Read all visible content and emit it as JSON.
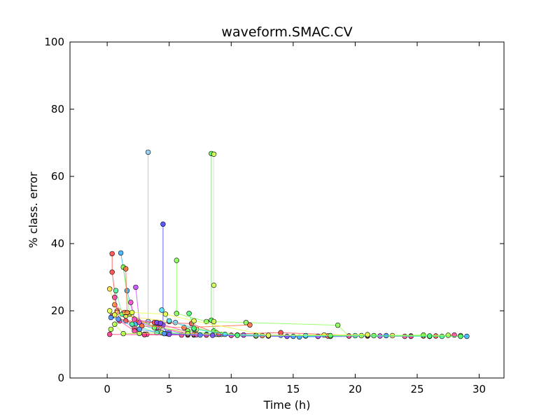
{
  "chart_data": {
    "type": "line",
    "title": "waveform.SMAC.CV",
    "xlabel": "Time (h)",
    "ylabel": "% class. error",
    "xlim": [
      -3,
      32
    ],
    "ylim": [
      0,
      100
    ],
    "xticks": [
      "0",
      "5",
      "10",
      "15",
      "20",
      "25",
      "30"
    ],
    "xtick_values": [
      0,
      5,
      10,
      15,
      20,
      25,
      30
    ],
    "yticks": [
      "0",
      "20",
      "40",
      "60",
      "80",
      "100"
    ],
    "ytick_values": [
      0,
      20,
      40,
      60,
      80,
      100
    ],
    "grid": false,
    "legend": "none",
    "series": [
      {
        "color": "#87cefa",
        "points": [
          [
            3.3,
            67.2
          ],
          [
            3.3,
            16.8
          ],
          [
            5.5,
            16.5
          ],
          [
            9.0,
            13.0
          ],
          [
            14.0,
            12.7
          ]
        ]
      },
      {
        "color": "#4848ff",
        "points": [
          [
            4.5,
            45.8
          ],
          [
            4.5,
            15.8
          ],
          [
            4.8,
            13.2
          ],
          [
            7.0,
            12.8
          ],
          [
            12.0,
            12.5
          ]
        ]
      },
      {
        "color": "#8cff5a",
        "points": [
          [
            5.6,
            35.0
          ],
          [
            5.6,
            19.2
          ],
          [
            8.0,
            16.8
          ],
          [
            11.2,
            16.5
          ],
          [
            18.6,
            15.7
          ],
          [
            19.5,
            12.5
          ]
        ]
      },
      {
        "color": "#4cff4c",
        "points": [
          [
            8.4,
            66.8
          ],
          [
            8.4,
            17.2
          ],
          [
            8.6,
            14.0
          ],
          [
            9.2,
            13.0
          ],
          [
            12.0,
            12.6
          ],
          [
            17.0,
            12.4
          ]
        ]
      },
      {
        "color": "#d2ff4c",
        "points": [
          [
            8.6,
            66.6
          ],
          [
            8.6,
            27.6
          ],
          [
            8.6,
            16.8
          ],
          [
            8.8,
            13.5
          ],
          [
            10.0,
            12.7
          ]
        ]
      },
      {
        "color": "#ff4c4c",
        "points": [
          [
            0.4,
            37.0
          ],
          [
            0.4,
            31.5
          ],
          [
            0.8,
            20.0
          ],
          [
            2.2,
            15.0
          ],
          [
            3.0,
            13.0
          ],
          [
            6.5,
            12.8
          ],
          [
            14.0,
            13.5
          ],
          [
            21.0,
            12.5
          ],
          [
            26.5,
            12.5
          ]
        ]
      },
      {
        "color": "#3cb4ff",
        "points": [
          [
            1.1,
            37.2
          ],
          [
            1.6,
            26.0
          ],
          [
            2.3,
            16.2
          ],
          [
            5.0,
            13.5
          ],
          [
            8.0,
            13.0
          ],
          [
            15.5,
            12.2
          ],
          [
            24.5,
            12.5
          ],
          [
            29.0,
            12.4
          ]
        ]
      },
      {
        "color": "#ffe04c",
        "points": [
          [
            0.2,
            26.5
          ],
          [
            0.8,
            19.5
          ],
          [
            1.5,
            18.5
          ],
          [
            5.0,
            16.8
          ],
          [
            7.2,
            14.5
          ],
          [
            11.0,
            12.8
          ],
          [
            17.5,
            12.8
          ],
          [
            23.0,
            12.6
          ],
          [
            28.5,
            12.6
          ]
        ]
      },
      {
        "color": "#4cff9a",
        "points": [
          [
            0.7,
            26.0
          ],
          [
            1.2,
            19.0
          ],
          [
            2.0,
            16.0
          ],
          [
            4.0,
            13.5
          ],
          [
            8.0,
            12.8
          ],
          [
            13.0,
            12.5
          ],
          [
            20.0,
            12.6
          ],
          [
            27.0,
            12.4
          ]
        ]
      },
      {
        "color": "#ff8c3c",
        "points": [
          [
            0.6,
            21.8
          ],
          [
            1.4,
            19.5
          ],
          [
            2.5,
            17.0
          ],
          [
            4.2,
            15.0
          ],
          [
            7.0,
            13.0
          ],
          [
            12.5,
            12.6
          ],
          [
            18.0,
            12.4
          ],
          [
            25.5,
            12.5
          ]
        ]
      },
      {
        "color": "#ff4ca0",
        "points": [
          [
            0.6,
            24.0
          ],
          [
            1.0,
            17.0
          ],
          [
            2.2,
            14.0
          ],
          [
            3.2,
            13.0
          ],
          [
            6.0,
            12.8
          ],
          [
            10.0,
            12.7
          ],
          [
            16.0,
            12.5
          ],
          [
            24.0,
            12.4
          ],
          [
            28.0,
            12.8
          ]
        ]
      },
      {
        "color": "#c84cff",
        "points": [
          [
            2.3,
            27.0
          ],
          [
            2.6,
            16.5
          ],
          [
            4.0,
            15.0
          ],
          [
            6.5,
            13.0
          ],
          [
            11.0,
            12.8
          ],
          [
            17.0,
            12.4
          ],
          [
            22.0,
            12.5
          ]
        ]
      },
      {
        "color": "#ff3c8c",
        "points": [
          [
            0.2,
            13.0
          ],
          [
            3.0,
            12.9
          ],
          [
            8.0,
            12.8
          ],
          [
            12.0,
            12.7
          ],
          [
            19.5,
            12.5
          ],
          [
            24.5,
            12.4
          ]
        ]
      },
      {
        "color": "#78ff4c",
        "points": [
          [
            1.3,
            33.0
          ],
          [
            1.8,
            19.0
          ],
          [
            3.8,
            15.0
          ],
          [
            6.5,
            14.0
          ],
          [
            8.8,
            13.0
          ],
          [
            12.0,
            12.6
          ],
          [
            21.5,
            12.6
          ],
          [
            25.5,
            12.8
          ]
        ]
      },
      {
        "color": "#ff7040",
        "points": [
          [
            1.5,
            32.5
          ],
          [
            1.6,
            19.5
          ],
          [
            2.8,
            15.5
          ],
          [
            6.2,
            15.0
          ],
          [
            11.5,
            15.8
          ]
        ]
      },
      {
        "color": "#ff4cc8",
        "points": [
          [
            1.9,
            22.5
          ],
          [
            2.2,
            17.5
          ],
          [
            4.2,
            16.2
          ],
          [
            7.2,
            12.9
          ],
          [
            13.0,
            12.5
          ],
          [
            21.0,
            12.7
          ]
        ]
      },
      {
        "color": "#b4ff4c",
        "points": [
          [
            0.3,
            14.5
          ],
          [
            0.6,
            16.0
          ],
          [
            1.3,
            13.2
          ],
          [
            2.6,
            13.3
          ],
          [
            4.4,
            13.5
          ],
          [
            6.5,
            13.2
          ],
          [
            10.5,
            12.8
          ],
          [
            20.5,
            12.6
          ],
          [
            27.5,
            12.7
          ]
        ]
      },
      {
        "color": "#ff5050",
        "points": [
          [
            0.4,
            18.5
          ],
          [
            1.5,
            17.0
          ],
          [
            3.8,
            16.5
          ],
          [
            6.8,
            16.2
          ],
          [
            9.0,
            13.0
          ],
          [
            17.8,
            12.5
          ]
        ]
      },
      {
        "color": "#4c9aff",
        "points": [
          [
            0.3,
            18.0
          ],
          [
            0.9,
            17.5
          ],
          [
            2.6,
            14.5
          ],
          [
            4.6,
            13.2
          ],
          [
            7.5,
            12.8
          ],
          [
            15.0,
            12.4
          ],
          [
            22.5,
            12.6
          ]
        ]
      },
      {
        "color": "#4ce6ff",
        "points": [
          [
            4.4,
            20.2
          ],
          [
            5.0,
            17.0
          ],
          [
            7.0,
            14.5
          ],
          [
            9.5,
            13.0
          ],
          [
            16.0,
            12.6
          ],
          [
            26.0,
            12.4
          ]
        ]
      },
      {
        "color": "#7a4cff",
        "points": [
          [
            4.0,
            16.5
          ],
          [
            4.3,
            16.3
          ],
          [
            5.0,
            13.0
          ],
          [
            8.5,
            12.7
          ],
          [
            14.5,
            12.4
          ]
        ]
      },
      {
        "color": "#4cff70",
        "points": [
          [
            6.6,
            19.2
          ],
          [
            7.0,
            14.8
          ],
          [
            10.5,
            12.7
          ],
          [
            18.0,
            12.6
          ],
          [
            26.0,
            12.5
          ],
          [
            28.5,
            12.4
          ]
        ]
      },
      {
        "color": "#e6ff4c",
        "points": [
          [
            0.2,
            20.0
          ],
          [
            0.6,
            18.8
          ],
          [
            2.0,
            19.5
          ],
          [
            4.7,
            19.0
          ],
          [
            7.0,
            17.0
          ],
          [
            13.0,
            12.7
          ],
          [
            21.0,
            12.9
          ]
        ]
      }
    ]
  }
}
